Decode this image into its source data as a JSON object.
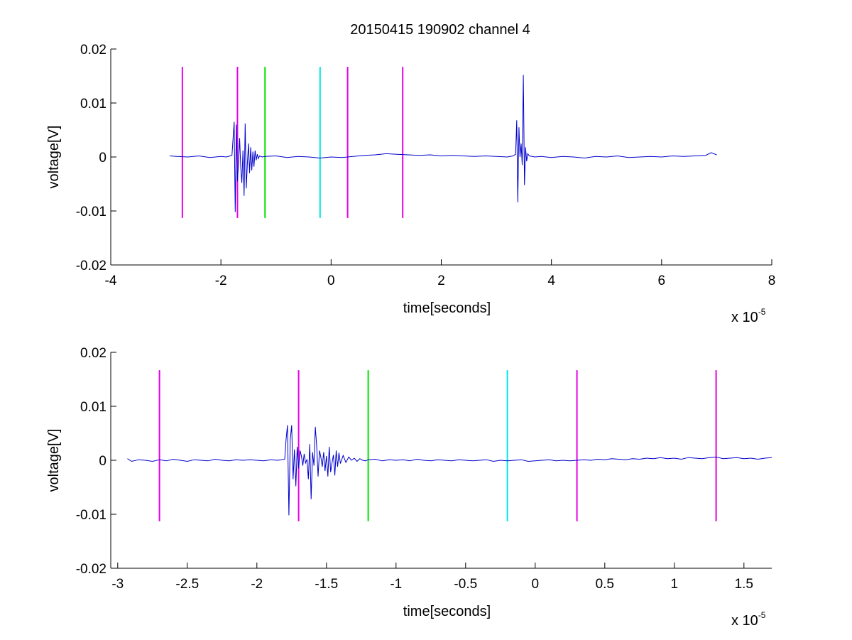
{
  "figure": {
    "title": "20150415 190902 channel 4",
    "background": "#ffffff"
  },
  "chart_data": [
    {
      "type": "line",
      "title": "20150415 190902 channel 4",
      "xlabel": "time[seconds]",
      "ylabel": "voltage[V]",
      "x_exponent_base": "x 10",
      "x_exponent_power": "-5",
      "xlim": [
        -4,
        8
      ],
      "ylim": [
        -0.02,
        0.02
      ],
      "xticks": [
        -4,
        -2,
        0,
        2,
        4,
        6,
        8
      ],
      "xtick_labels": [
        "-4",
        "-2",
        "0",
        "2",
        "4",
        "6",
        "8"
      ],
      "yticks": [
        0.02,
        0.01,
        0,
        -0.01,
        -0.02
      ],
      "ytick_labels": [
        "0.02",
        "0.01",
        "0",
        "-0.01",
        "-0.02"
      ],
      "grid": false,
      "legend": "none",
      "series": [
        {
          "color": "#0000cc",
          "x": [
            -2.93,
            -2.8,
            -2.6,
            -2.4,
            -2.2,
            -2.0,
            -1.9,
            -1.8,
            -1.76,
            -1.74,
            -1.72,
            -1.7,
            -1.68,
            -1.66,
            -1.64,
            -1.62,
            -1.6,
            -1.58,
            -1.56,
            -1.54,
            -1.52,
            -1.5,
            -1.48,
            -1.46,
            -1.44,
            -1.42,
            -1.4,
            -1.38,
            -1.36,
            -1.34,
            -1.32,
            -1.3,
            -1.25,
            -1.2,
            -1.0,
            -0.8,
            -0.6,
            -0.4,
            -0.2,
            0.0,
            0.2,
            0.4,
            0.6,
            0.8,
            1.0,
            1.2,
            1.4,
            1.6,
            1.8,
            2.0,
            2.2,
            2.4,
            2.6,
            2.8,
            3.0,
            3.2,
            3.3,
            3.35,
            3.37,
            3.39,
            3.41,
            3.43,
            3.45,
            3.47,
            3.49,
            3.51,
            3.53,
            3.55,
            3.57,
            3.6,
            3.7,
            3.8,
            4.0,
            4.2,
            4.4,
            4.6,
            4.8,
            5.0,
            5.2,
            5.4,
            5.6,
            5.8,
            6.0,
            6.2,
            6.4,
            6.6,
            6.8,
            6.9,
            7.0
          ],
          "y": [
            0.0002,
            0.0001,
            0.0,
            0.0002,
            -0.0001,
            0.0001,
            0.0,
            0.0003,
            0.0065,
            -0.0102,
            0.006,
            -0.0045,
            -0.001,
            0.0035,
            -0.002,
            -0.0048,
            0.0012,
            -0.0072,
            0.0062,
            -0.0058,
            -0.0012,
            0.0025,
            -0.003,
            0.0018,
            -0.0025,
            0.001,
            -0.0018,
            0.0012,
            -0.0006,
            0.0005,
            -0.0003,
            0.0002,
            0.0,
            0.0001,
            0.0002,
            -0.0001,
            0.0001,
            0.0,
            -0.0002,
            0.0,
            -0.0001,
            0.0001,
            0.0003,
            0.0004,
            0.0006,
            0.0005,
            0.0004,
            0.0003,
            0.0004,
            0.0002,
            0.0003,
            0.0002,
            0.0001,
            0.0002,
            0.0001,
            0.0,
            0.0002,
            0.0005,
            0.0068,
            -0.0084,
            0.0055,
            0.0,
            0.0025,
            -0.0015,
            0.0152,
            -0.0052,
            0.0018,
            -0.0008,
            0.0006,
            0.0002,
            0.0,
            0.0001,
            -0.0001,
            0.0001,
            0.0,
            -0.0002,
            0.0001,
            0.0,
            0.0002,
            -0.0001,
            0.0,
            0.0001,
            0.0,
            0.0002,
            0.0001,
            0.0002,
            0.0003,
            0.0008,
            0.0004
          ]
        }
      ],
      "vlines": [
        {
          "x": -2.7,
          "color": "#e600e6"
        },
        {
          "x": -1.7,
          "color": "#e600e6"
        },
        {
          "x": -1.2,
          "color": "#00e600"
        },
        {
          "x": -0.2,
          "color": "#00e6e6"
        },
        {
          "x": 0.3,
          "color": "#e600e6"
        },
        {
          "x": 1.3,
          "color": "#e600e6"
        }
      ],
      "vline_range": [
        -0.0113,
        0.0167
      ]
    },
    {
      "type": "line",
      "title": "",
      "xlabel": "time[seconds]",
      "ylabel": "voltage[V]",
      "x_exponent_base": "x 10",
      "x_exponent_power": "-5",
      "xlim": [
        -3.05,
        1.7
      ],
      "ylim": [
        -0.02,
        0.02
      ],
      "xticks": [
        -3,
        -2.5,
        -2,
        -1.5,
        -1,
        -0.5,
        0,
        0.5,
        1,
        1.5
      ],
      "xtick_labels": [
        "-3",
        "-2.5",
        "-2",
        "-1.5",
        "-1",
        "-0.5",
        "0",
        "0.5",
        "1",
        "1.5"
      ],
      "yticks": [
        0.02,
        0.01,
        0,
        -0.01,
        -0.02
      ],
      "ytick_labels": [
        "0.02",
        "0.01",
        "0",
        "-0.01",
        "-0.02"
      ],
      "grid": false,
      "legend": "none",
      "series": [
        {
          "color": "#0000cc",
          "x": [
            -2.93,
            -2.9,
            -2.85,
            -2.8,
            -2.75,
            -2.7,
            -2.65,
            -2.6,
            -2.55,
            -2.5,
            -2.45,
            -2.4,
            -2.35,
            -2.3,
            -2.25,
            -2.2,
            -2.15,
            -2.1,
            -2.05,
            -2.0,
            -1.95,
            -1.9,
            -1.85,
            -1.8,
            -1.79,
            -1.78,
            -1.77,
            -1.76,
            -1.75,
            -1.74,
            -1.73,
            -1.72,
            -1.71,
            -1.7,
            -1.69,
            -1.68,
            -1.67,
            -1.66,
            -1.65,
            -1.64,
            -1.63,
            -1.62,
            -1.61,
            -1.6,
            -1.59,
            -1.58,
            -1.57,
            -1.56,
            -1.55,
            -1.54,
            -1.53,
            -1.52,
            -1.51,
            -1.5,
            -1.49,
            -1.48,
            -1.47,
            -1.46,
            -1.45,
            -1.44,
            -1.43,
            -1.42,
            -1.41,
            -1.4,
            -1.38,
            -1.36,
            -1.34,
            -1.32,
            -1.3,
            -1.28,
            -1.26,
            -1.24,
            -1.22,
            -1.2,
            -1.15,
            -1.1,
            -1.05,
            -1.0,
            -0.95,
            -0.9,
            -0.85,
            -0.8,
            -0.75,
            -0.7,
            -0.65,
            -0.6,
            -0.55,
            -0.5,
            -0.45,
            -0.4,
            -0.35,
            -0.3,
            -0.25,
            -0.2,
            -0.15,
            -0.1,
            -0.05,
            0.0,
            0.05,
            0.1,
            0.15,
            0.2,
            0.25,
            0.3,
            0.35,
            0.4,
            0.45,
            0.5,
            0.55,
            0.6,
            0.65,
            0.7,
            0.75,
            0.8,
            0.85,
            0.9,
            0.95,
            1.0,
            1.05,
            1.1,
            1.15,
            1.2,
            1.25,
            1.3,
            1.35,
            1.4,
            1.45,
            1.5,
            1.55,
            1.6,
            1.65,
            1.7
          ],
          "y": [
            0.0003,
            -0.0002,
            0.0001,
            0.0,
            -0.0002,
            0.0001,
            -0.0001,
            0.0002,
            0.0,
            -0.0002,
            0.0001,
            0.0,
            -0.0001,
            0.0002,
            0.0,
            -0.0001,
            0.0001,
            0.0,
            0.0001,
            0.0,
            -0.0001,
            0.0001,
            0.0,
            0.0002,
            0.004,
            0.0065,
            -0.0102,
            0.0038,
            0.0065,
            -0.0035,
            0.002,
            -0.0048,
            0.0025,
            -0.0015,
            0.0018,
            0.0008,
            -0.001,
            0.0012,
            -0.0005,
            0.0002,
            -0.0035,
            0.003,
            -0.0072,
            0.0015,
            -0.001,
            0.0062,
            0.0025,
            -0.003,
            0.0018,
            0.0005,
            -0.0012,
            0.0015,
            -0.002,
            0.0008,
            -0.003,
            0.0025,
            -0.0022,
            -0.0005,
            0.001,
            -0.0028,
            0.0018,
            -0.0012,
            0.0014,
            -0.0006,
            0.0009,
            -0.0004,
            0.0006,
            0.0,
            0.0004,
            -0.0002,
            0.0003,
            0.0,
            -0.0001,
            0.0001,
            0.0002,
            -0.0001,
            0.0001,
            0.0,
            0.0001,
            -0.0001,
            0.0002,
            0.0,
            -0.0001,
            0.0001,
            0.0,
            -0.0001,
            0.0001,
            0.0,
            -0.0001,
            0.0,
            0.0001,
            -0.0002,
            0.0,
            -0.0001,
            0.0,
            0.0001,
            -0.0002,
            -0.0001,
            0.0,
            0.0001,
            -0.0001,
            0.0,
            -0.0001,
            0.0,
            0.0001,
            0.0,
            0.0002,
            0.0001,
            0.0003,
            0.0002,
            0.0001,
            0.0003,
            0.0002,
            0.0004,
            0.0003,
            0.0005,
            0.0003,
            0.0004,
            0.0002,
            0.0005,
            0.0004,
            0.0003,
            0.0005,
            0.0006,
            0.0003,
            0.0004,
            0.0005,
            0.0003,
            0.0004,
            0.0002,
            0.0004,
            0.0005
          ]
        }
      ],
      "vlines": [
        {
          "x": -2.7,
          "color": "#e600e6"
        },
        {
          "x": -1.7,
          "color": "#e600e6"
        },
        {
          "x": -1.2,
          "color": "#00e600"
        },
        {
          "x": -0.2,
          "color": "#00e6e6"
        },
        {
          "x": 0.3,
          "color": "#e600e6"
        },
        {
          "x": 1.3,
          "color": "#e600e6"
        }
      ],
      "vline_range": [
        -0.0113,
        0.0167
      ]
    }
  ]
}
